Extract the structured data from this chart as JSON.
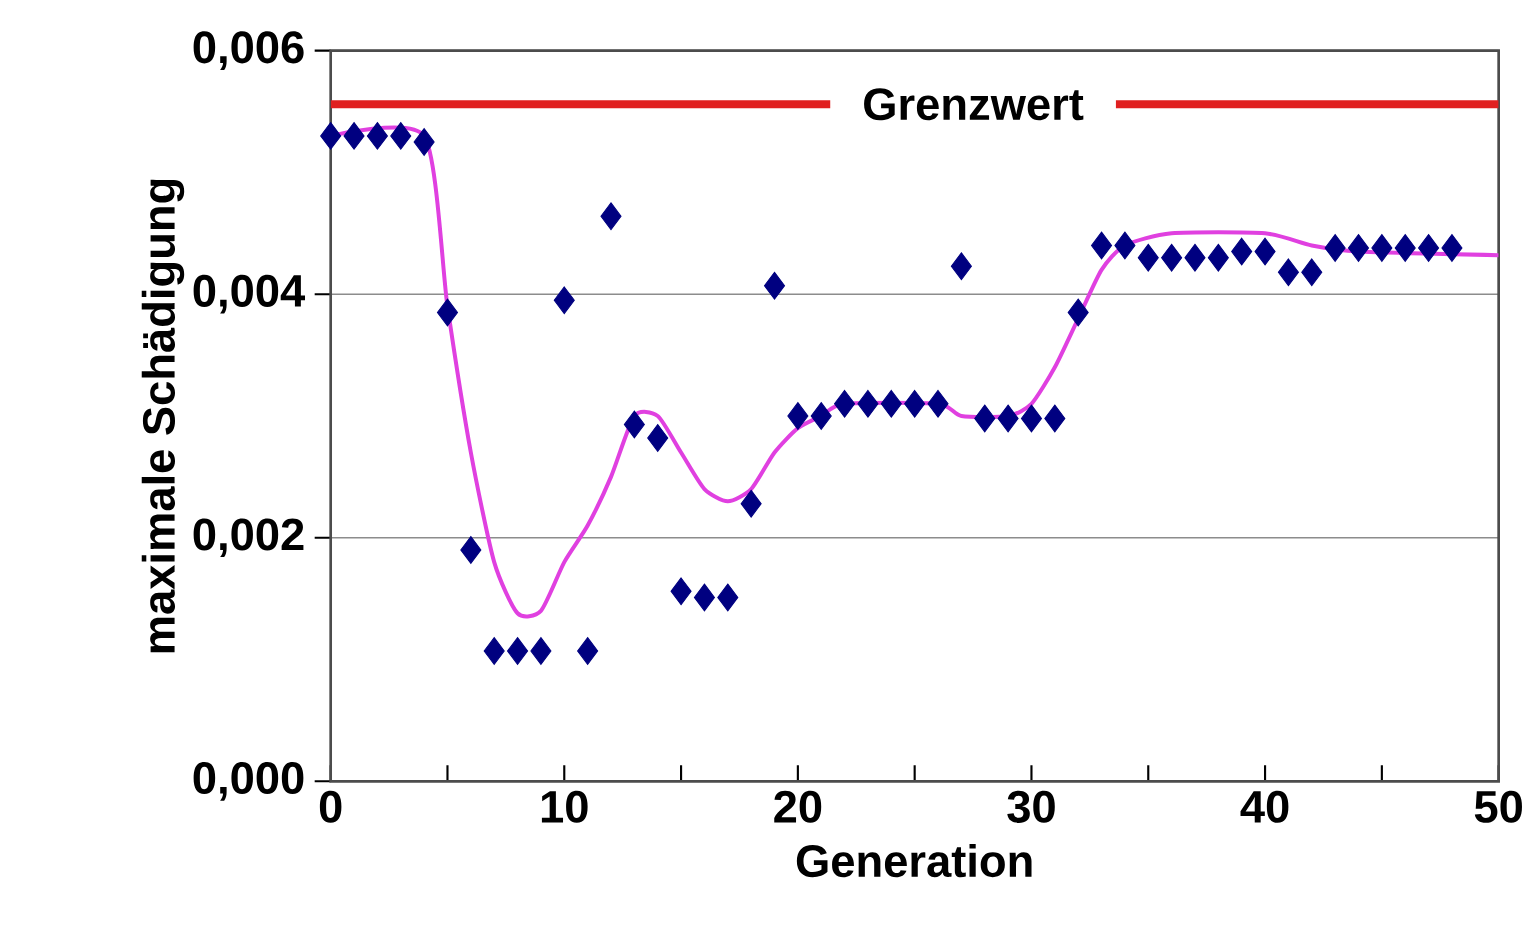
{
  "chart_data": {
    "type": "scatter",
    "xlabel": "Generation",
    "ylabel": "maximale Schädigung",
    "xlim": [
      0,
      50
    ],
    "ylim": [
      0,
      0.006
    ],
    "xticks": [
      0,
      10,
      20,
      30,
      40,
      50
    ],
    "yticks": [
      {
        "value": 0,
        "label": "0,000"
      },
      {
        "value": 0.002,
        "label": "0,002"
      },
      {
        "value": 0.004,
        "label": "0,004"
      },
      {
        "value": 0.006,
        "label": "0,006"
      }
    ],
    "grid": "y",
    "marker": "diamond",
    "series": [
      {
        "color": "#000080",
        "x": [
          0,
          1,
          2,
          3,
          4,
          5,
          6,
          7,
          8,
          9,
          10,
          11,
          12,
          13,
          14,
          15,
          16,
          17,
          18,
          19,
          20,
          21,
          22,
          23,
          24,
          25,
          26,
          27,
          28,
          29,
          30,
          31,
          32,
          33,
          34,
          35,
          36,
          37,
          38,
          39,
          40,
          41,
          42,
          43,
          44,
          45,
          46,
          47,
          48
        ],
        "values": [
          0.0053,
          0.0053,
          0.0053,
          0.0053,
          0.00525,
          0.00385,
          0.0019,
          0.00107,
          0.00107,
          0.00107,
          0.00395,
          0.00107,
          0.00464,
          0.00293,
          0.00282,
          0.00156,
          0.00151,
          0.00151,
          0.00228,
          0.00407,
          0.003,
          0.003,
          0.0031,
          0.0031,
          0.0031,
          0.0031,
          0.0031,
          0.00423,
          0.00298,
          0.00298,
          0.00298,
          0.00298,
          0.00385,
          0.0044,
          0.0044,
          0.0043,
          0.0043,
          0.0043,
          0.0043,
          0.00435,
          0.00435,
          0.00418,
          0.00418,
          0.00438,
          0.00438,
          0.00438,
          0.00438,
          0.00438,
          0.00438
        ]
      },
      {
        "type": "line",
        "color": "#e040e0",
        "marker": "none",
        "x": [
          0,
          4,
          5,
          6,
          7,
          8,
          9,
          10,
          11,
          12,
          13,
          14,
          15,
          16,
          17,
          18,
          19,
          20,
          21,
          22,
          26,
          27,
          29,
          30,
          31,
          32,
          33,
          34,
          36,
          40,
          42,
          44,
          50
        ],
        "values": [
          0.0053,
          0.0053,
          0.0039,
          0.0027,
          0.0018,
          0.00138,
          0.0014,
          0.0018,
          0.0021,
          0.0025,
          0.003,
          0.003,
          0.0027,
          0.0024,
          0.0023,
          0.0024,
          0.0027,
          0.0029,
          0.003,
          0.0031,
          0.0031,
          0.003,
          0.003,
          0.0031,
          0.0034,
          0.0038,
          0.0042,
          0.0044,
          0.0045,
          0.0045,
          0.0044,
          0.00435,
          0.00432
        ]
      }
    ],
    "ref_lines": [
      {
        "axis": "y",
        "value": 0.00556,
        "label": "Grenzwert",
        "color": "#e02020"
      }
    ]
  }
}
